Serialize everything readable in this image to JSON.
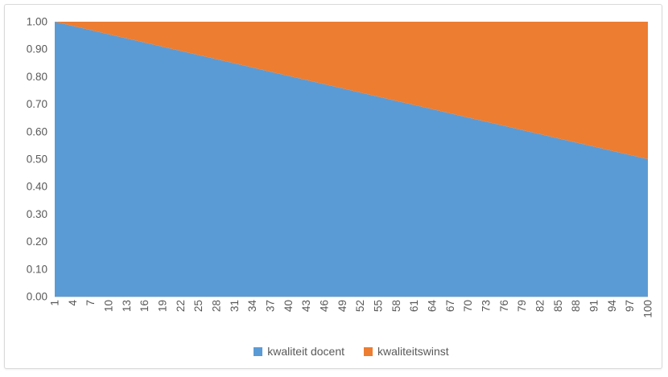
{
  "chart_data": {
    "type": "area",
    "stacked": true,
    "title": "",
    "xlabel": "",
    "ylabel": "",
    "x_range": [
      1,
      100
    ],
    "ylim": [
      0,
      1
    ],
    "grid": false,
    "legend_position": "bottom-center",
    "background": "#FFFFFF",
    "text_color": "#595959",
    "axis_color": "#D9D9D9",
    "y_tick_labels": [
      "0.00",
      "0.10",
      "0.20",
      "0.30",
      "0.40",
      "0.50",
      "0.60",
      "0.70",
      "0.80",
      "0.90",
      "1.00"
    ],
    "categories": [
      1,
      4,
      7,
      10,
      13,
      16,
      19,
      22,
      25,
      28,
      31,
      34,
      37,
      40,
      43,
      46,
      49,
      52,
      55,
      58,
      61,
      64,
      67,
      70,
      73,
      76,
      79,
      82,
      85,
      88,
      91,
      94,
      97,
      100
    ],
    "series": [
      {
        "name": "kwaliteit docent",
        "color": "#5B9BD5",
        "values": [
          1.0,
          0.9848,
          0.9697,
          0.9545,
          0.9394,
          0.9242,
          0.9091,
          0.8939,
          0.8788,
          0.8636,
          0.8485,
          0.8333,
          0.8182,
          0.803,
          0.7879,
          0.7727,
          0.7576,
          0.7424,
          0.7273,
          0.7121,
          0.697,
          0.6818,
          0.6667,
          0.6515,
          0.6364,
          0.6212,
          0.6061,
          0.5909,
          0.5758,
          0.5606,
          0.5455,
          0.5303,
          0.5152,
          0.5
        ]
      },
      {
        "name": "kwaliteitswinst",
        "color": "#ED7D31",
        "values": [
          0.0,
          0.0152,
          0.0303,
          0.0455,
          0.0606,
          0.0758,
          0.0909,
          0.1061,
          0.1212,
          0.1364,
          0.1515,
          0.1667,
          0.1818,
          0.197,
          0.2121,
          0.2273,
          0.2424,
          0.2576,
          0.2727,
          0.2879,
          0.303,
          0.3182,
          0.3333,
          0.3485,
          0.3636,
          0.3788,
          0.3939,
          0.4091,
          0.4242,
          0.4394,
          0.4545,
          0.4697,
          0.4848,
          0.5
        ]
      }
    ]
  }
}
